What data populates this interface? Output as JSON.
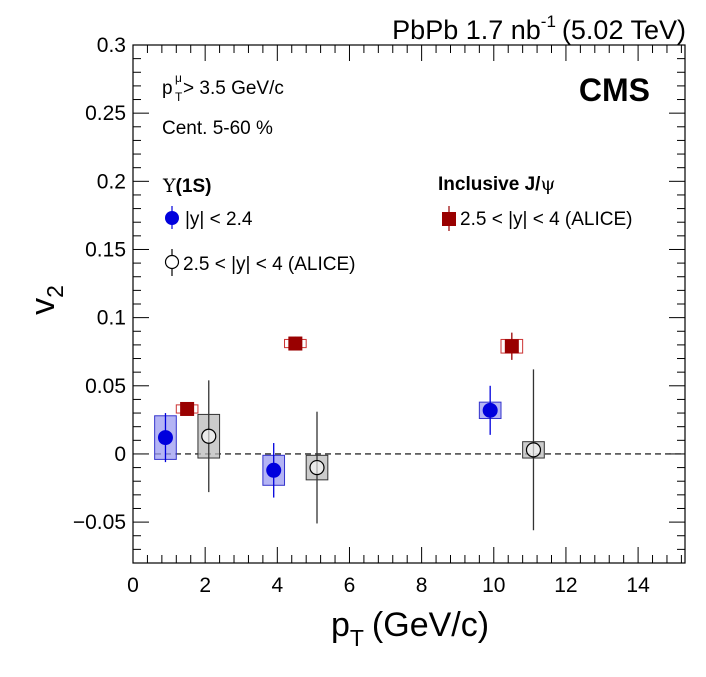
{
  "chart_data": {
    "type": "scatter",
    "title_top": {
      "main": "PbPb 1.7 nb",
      "sup": "-1",
      "energy": "(5.02 TeV)"
    },
    "experiment_label": "CMS",
    "xlabel": {
      "main": "p",
      "sub": "T",
      "units": "(GeV/c)"
    },
    "ylabel": {
      "main": "v",
      "sub": "2"
    },
    "xlim": [
      0,
      15.3
    ],
    "ylim": [
      -0.08,
      0.3
    ],
    "x_ticks": [
      "0",
      "2",
      "4",
      "6",
      "8",
      "10",
      "12",
      "14"
    ],
    "y_ticks": [
      "−0.05",
      "0",
      "0.05",
      "0.1",
      "0.15",
      "0.2",
      "0.25",
      "0.3"
    ],
    "x_tick_values": [
      0,
      2,
      4,
      6,
      8,
      10,
      12,
      14
    ],
    "y_tick_values": [
      -0.05,
      0,
      0.05,
      0.1,
      0.15,
      0.2,
      0.25,
      0.3
    ],
    "reference_line_y": 0,
    "annotations": {
      "cut_prefix": "p",
      "cut_sub": "T",
      "cut_sup": "μ",
      "cut_rest": " > 3.5 GeV/c",
      "centrality": "Cent. 5-60 %"
    },
    "legend": {
      "upsilon_header_symbol": "Υ",
      "upsilon_header_rest": "(1S)",
      "upsilon_cms": "|y| < 2.4",
      "upsilon_alice": "2.5 < |y| < 4 (ALICE)",
      "jpsi_header_text": "Inclusive J/",
      "jpsi_header_symbol": "ψ",
      "jpsi_alice": "2.5 < |y| < 4 (ALICE)"
    },
    "series": [
      {
        "name": "Υ(1S) |y| < 2.4 (CMS)",
        "marker": "filled-circle",
        "color": "#0000dd",
        "sys_color": "#9b9bf0",
        "points": [
          {
            "x": 0.9,
            "y": 0.012,
            "err": 0.018,
            "sys": 0.016,
            "box_w": 0.6
          },
          {
            "x": 3.9,
            "y": -0.012,
            "err": 0.02,
            "sys": 0.011,
            "box_w": 0.6
          },
          {
            "x": 9.9,
            "y": 0.032,
            "err": 0.018,
            "sys": 0.006,
            "box_w": 0.6
          }
        ]
      },
      {
        "name": "Υ(1S) 2.5 < |y| < 4 (ALICE)",
        "marker": "open-circle",
        "color": "#000000",
        "sys_color": "#bbbbbb",
        "points": [
          {
            "x": 2.1,
            "y": 0.013,
            "err": 0.041,
            "sys": 0.016,
            "box_w": 0.6
          },
          {
            "x": 5.1,
            "y": -0.01,
            "err": 0.041,
            "sys": 0.009,
            "box_w": 0.6
          },
          {
            "x": 11.1,
            "y": 0.003,
            "err": 0.059,
            "sys": 0.006,
            "box_w": 0.6
          }
        ]
      },
      {
        "name": "Inclusive J/ψ 2.5 < |y| < 4 (ALICE)",
        "marker": "filled-square",
        "color": "#990000",
        "sys_color": "#cc3333",
        "points": [
          {
            "x": 1.5,
            "y": 0.033,
            "err": 0.004,
            "sys": 0.003,
            "box_w": 0.6
          },
          {
            "x": 4.5,
            "y": 0.081,
            "err": 0.005,
            "sys": 0.003,
            "box_w": 0.6
          },
          {
            "x": 10.5,
            "y": 0.079,
            "err": 0.01,
            "sys": 0.005,
            "box_w": 0.6
          }
        ]
      }
    ]
  }
}
